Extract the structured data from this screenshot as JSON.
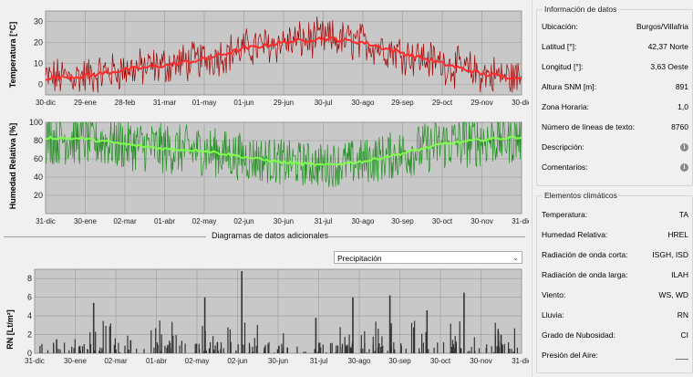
{
  "charts": {
    "temperature": {
      "ylabel": "Temperatura [°C]",
      "yticks": [
        "0",
        "10",
        "20",
        "30"
      ],
      "xticks": [
        "30-dic",
        "29-ene",
        "28-feb",
        "31-mar",
        "01-may",
        "01-jun",
        "29-jun",
        "30-jul",
        "30-ago",
        "29-sep",
        "29-oct",
        "29-nov",
        "30-dic"
      ],
      "line_color": "#ff2a2a",
      "data_color": "#a00000"
    },
    "humidity": {
      "ylabel": "Humedad Relativa [%]",
      "yticks": [
        "20",
        "40",
        "60",
        "80",
        "100"
      ],
      "xticks": [
        "31-dic",
        "30-ene",
        "02-mar",
        "01-abr",
        "02-may",
        "02-jun",
        "30-jun",
        "31-jul",
        "30-ago",
        "30-sep",
        "30-oct",
        "30-nov",
        "31-dic"
      ],
      "line_color": "#7dff4a",
      "data_color": "#1f8f1f"
    },
    "rain": {
      "ylabel": "RN [Lt/m²]",
      "yticks": [
        "0",
        "2",
        "4",
        "6",
        "8"
      ],
      "xticks": [
        "31-dic",
        "30-ene",
        "02-mar",
        "01-abr",
        "02-may",
        "02-jun",
        "30-jun",
        "31-jul",
        "30-ago",
        "30-sep",
        "30-oct",
        "30-nov",
        "31-dic"
      ],
      "bar_color": "#333333"
    }
  },
  "chart_data": [
    {
      "type": "line",
      "xlabel": "",
      "ylabel": "Temperatura [°C]",
      "ylim": [
        -5,
        35
      ],
      "x": [
        "30-dic",
        "29-ene",
        "28-feb",
        "31-mar",
        "01-may",
        "01-jun",
        "29-jun",
        "30-jul",
        "30-ago",
        "29-sep",
        "29-oct",
        "29-nov",
        "30-dic"
      ],
      "series": [
        {
          "values": [
            3,
            4,
            7,
            9,
            12,
            17,
            20,
            22,
            20,
            15,
            10,
            5,
            3
          ]
        }
      ],
      "grid": true
    },
    {
      "type": "line",
      "xlabel": "",
      "ylabel": "Humedad Relativa [%]",
      "ylim": [
        0,
        100
      ],
      "x": [
        "31-dic",
        "30-ene",
        "02-mar",
        "01-abr",
        "02-may",
        "02-jun",
        "30-jun",
        "31-jul",
        "30-ago",
        "30-sep",
        "30-oct",
        "30-nov",
        "31-dic"
      ],
      "series": [
        {
          "values": [
            83,
            82,
            76,
            71,
            69,
            62,
            56,
            53,
            57,
            66,
            76,
            81,
            84
          ]
        }
      ],
      "grid": true
    },
    {
      "type": "bar",
      "xlabel": "",
      "ylabel": "RN [Lt/m²]",
      "ylim": [
        0,
        9
      ],
      "categories": [
        "31-dic",
        "30-ene",
        "02-mar",
        "01-abr",
        "02-may",
        "02-jun",
        "30-jun",
        "31-jul",
        "30-ago",
        "30-sep",
        "30-oct",
        "30-nov",
        "31-dic"
      ],
      "values": [
        1.5,
        5.4,
        1.4,
        0.9,
        6.0,
        8.8,
        0.8,
        3.8,
        6.0,
        6.2,
        4.6,
        6.5,
        2.0
      ],
      "grid": true
    }
  ],
  "section": {
    "label": "Diagramas de datos adicionales"
  },
  "dropdown": {
    "selected": "Precipitación"
  },
  "info": {
    "title": "Información de datos",
    "rows": [
      {
        "label": "Ubicación:",
        "value": "Burgos/Villafria"
      },
      {
        "label": "Latitud [°]:",
        "value": "42,37 Norte"
      },
      {
        "label": "Longitud [°]:",
        "value": "3,63 Oeste"
      },
      {
        "label": "Altura SNM [m]:",
        "value": "891"
      },
      {
        "label": "Zona Horaria:",
        "value": "1,0"
      },
      {
        "label": "Número de líneas de texto:",
        "value": "8760"
      },
      {
        "label": "Descripción:",
        "value": ""
      },
      {
        "label": "Comentarios:",
        "value": ""
      }
    ]
  },
  "elements": {
    "title": "Elementos climáticos",
    "rows": [
      {
        "label": "Temperatura:",
        "value": "TA"
      },
      {
        "label": "Humedad Relativa:",
        "value": "HREL"
      },
      {
        "label": "Radiación de onda corta:",
        "value": "ISGH, ISD"
      },
      {
        "label": "Radiación de onda larga:",
        "value": "ILAH"
      },
      {
        "label": "Viento:",
        "value": "WS, WD"
      },
      {
        "label": "Lluvia:",
        "value": "RN"
      },
      {
        "label": "Grado de Nubosidad:",
        "value": "CI"
      },
      {
        "label": "Presión del Aire:",
        "value": "___"
      }
    ]
  }
}
